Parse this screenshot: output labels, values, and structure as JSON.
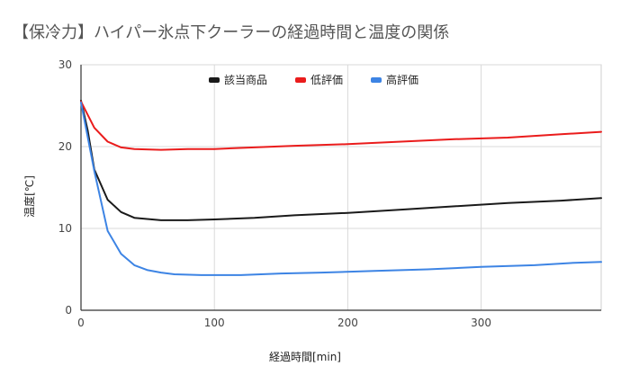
{
  "chart_data": {
    "type": "line",
    "title": "【保冷力】ハイパー氷点下クーラーの経過時間と温度の関係",
    "xlabel": "経過時間[min]",
    "ylabel": "温度[℃]",
    "xlim": [
      0,
      390
    ],
    "ylim": [
      0,
      30
    ],
    "x_ticks": [
      0,
      100,
      200,
      300
    ],
    "y_ticks": [
      0,
      10,
      20,
      30
    ],
    "grid": true,
    "legend_position": "top",
    "series": [
      {
        "name": "該当商品",
        "color": "#1a1a1a",
        "points": [
          [
            0,
            25.6
          ],
          [
            5,
            22
          ],
          [
            10,
            17.2
          ],
          [
            20,
            13.5
          ],
          [
            30,
            12
          ],
          [
            40,
            11.3
          ],
          [
            60,
            11
          ],
          [
            80,
            11
          ],
          [
            100,
            11.1
          ],
          [
            130,
            11.3
          ],
          [
            160,
            11.6
          ],
          [
            200,
            11.9
          ],
          [
            240,
            12.3
          ],
          [
            280,
            12.7
          ],
          [
            320,
            13.1
          ],
          [
            360,
            13.4
          ],
          [
            390,
            13.7
          ]
        ]
      },
      {
        "name": "低評価",
        "color": "#ea1c1c",
        "points": [
          [
            0,
            25.5
          ],
          [
            10,
            22.3
          ],
          [
            20,
            20.6
          ],
          [
            30,
            19.9
          ],
          [
            40,
            19.7
          ],
          [
            60,
            19.6
          ],
          [
            80,
            19.7
          ],
          [
            100,
            19.7
          ],
          [
            130,
            19.9
          ],
          [
            160,
            20.1
          ],
          [
            200,
            20.3
          ],
          [
            240,
            20.6
          ],
          [
            280,
            20.9
          ],
          [
            320,
            21.1
          ],
          [
            360,
            21.5
          ],
          [
            390,
            21.8
          ]
        ]
      },
      {
        "name": "高評価",
        "color": "#3d84e4",
        "points": [
          [
            0,
            25.4
          ],
          [
            10,
            17
          ],
          [
            20,
            9.7
          ],
          [
            30,
            6.9
          ],
          [
            40,
            5.5
          ],
          [
            50,
            4.9
          ],
          [
            60,
            4.6
          ],
          [
            70,
            4.4
          ],
          [
            90,
            4.3
          ],
          [
            120,
            4.3
          ],
          [
            150,
            4.5
          ],
          [
            180,
            4.6
          ],
          [
            220,
            4.8
          ],
          [
            260,
            5
          ],
          [
            300,
            5.3
          ],
          [
            340,
            5.5
          ],
          [
            370,
            5.8
          ],
          [
            390,
            5.9
          ]
        ]
      }
    ]
  }
}
